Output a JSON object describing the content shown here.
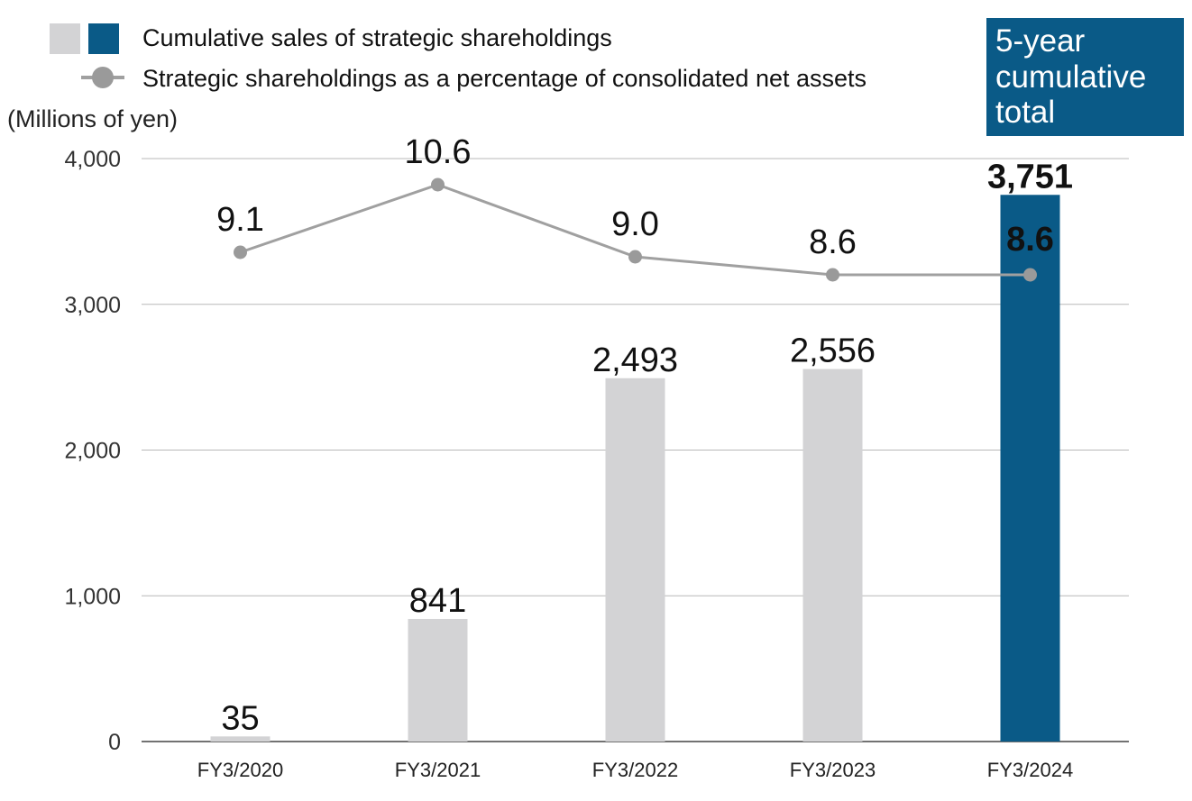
{
  "legend": {
    "bar_label": "Cumulative sales of strategic shareholdings",
    "line_label": "Strategic shareholdings as a percentage of consolidated net assets"
  },
  "unit_label": "(Millions of yen)",
  "badge": {
    "lines": [
      "5-year",
      "cumulative",
      "total"
    ]
  },
  "colors": {
    "bar": "#d3d3d5",
    "highlight": "#0a5a87",
    "line": "#a0a0a0",
    "marker": "#9a9a9a",
    "grid": "#b8b8b8",
    "axis": "#444444"
  },
  "chart_data": {
    "type": "bar",
    "categories": [
      "FY3/2020",
      "FY3/2021",
      "FY3/2022",
      "FY3/2023",
      "FY3/2024"
    ],
    "series": [
      {
        "name": "Cumulative sales of strategic shareholdings",
        "type": "bar",
        "values": [
          35,
          841,
          2493,
          2556,
          3751
        ],
        "labels": [
          "35",
          "841",
          "2,493",
          "2,556",
          "3,751"
        ],
        "highlight_index": 4
      },
      {
        "name": "Strategic shareholdings as a percentage of consolidated net assets",
        "type": "line",
        "values": [
          9.1,
          10.6,
          9.0,
          8.6,
          8.6
        ],
        "labels": [
          "9.1",
          "10.6",
          "9.0",
          "8.6",
          "8.6"
        ]
      }
    ],
    "ylabel": "(Millions of yen)",
    "ylim": [
      0,
      4000
    ],
    "yticks": [
      0,
      1000,
      2000,
      3000,
      4000
    ],
    "ytick_labels": [
      "0",
      "1,000",
      "2,000",
      "3,000",
      "4,000"
    ],
    "grid": true,
    "legend_position": "top-left"
  }
}
